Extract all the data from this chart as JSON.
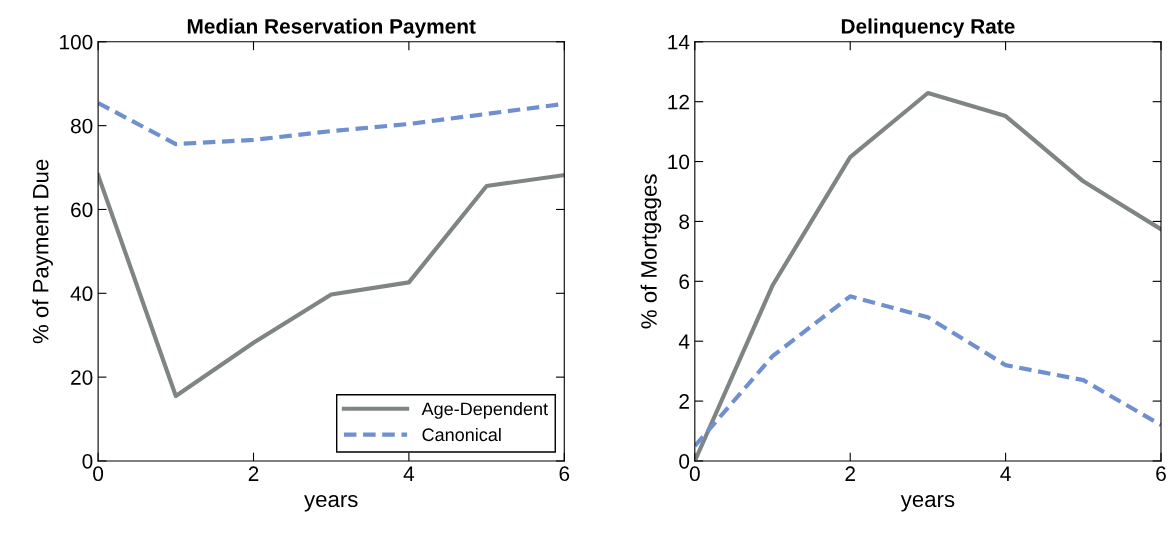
{
  "chart_data": [
    {
      "type": "line",
      "title": "Median Reservation Payment",
      "xlabel": "years",
      "ylabel": "% of Payment Due",
      "x": [
        0,
        1,
        2,
        3,
        4,
        5,
        6
      ],
      "xlim": [
        0,
        6
      ],
      "xticks": [
        0,
        2,
        4,
        6
      ],
      "ylim": [
        0,
        100
      ],
      "yticks": [
        0,
        20,
        40,
        60,
        80,
        100
      ],
      "grid": false,
      "legend": "bottom right",
      "series": [
        {
          "name": "Age-Dependent",
          "color": "#7f8584",
          "line_style": "solid",
          "values": [
            68.2,
            15.5,
            28.2,
            39.7,
            42.6,
            65.6,
            68.2
          ]
        },
        {
          "name": "Canonical",
          "color": "#6f8fcf",
          "line_style": "dashed",
          "values": [
            85.4,
            75.6,
            76.6,
            78.7,
            80.4,
            82.8,
            85.2
          ]
        }
      ]
    },
    {
      "type": "line",
      "title": "Delinquency Rate",
      "xlabel": "years",
      "ylabel": "% of Mortgages",
      "x": [
        0,
        1,
        2,
        3,
        4,
        5,
        6
      ],
      "xlim": [
        0,
        6
      ],
      "xticks": [
        0,
        2,
        4,
        6
      ],
      "ylim": [
        0,
        14
      ],
      "yticks": [
        0,
        2,
        4,
        6,
        8,
        10,
        12,
        14
      ],
      "grid": false,
      "legend": false,
      "series": [
        {
          "color": "#7f8584",
          "line_style": "solid",
          "values": [
            0,
            5.86,
            10.15,
            12.29,
            11.52,
            9.34,
            7.74
          ]
        },
        {
          "color": "#6f8fcf",
          "line_style": "dashed",
          "values": [
            0.5,
            3.5,
            5.5,
            4.8,
            3.2,
            2.7,
            1.2
          ]
        }
      ]
    }
  ]
}
